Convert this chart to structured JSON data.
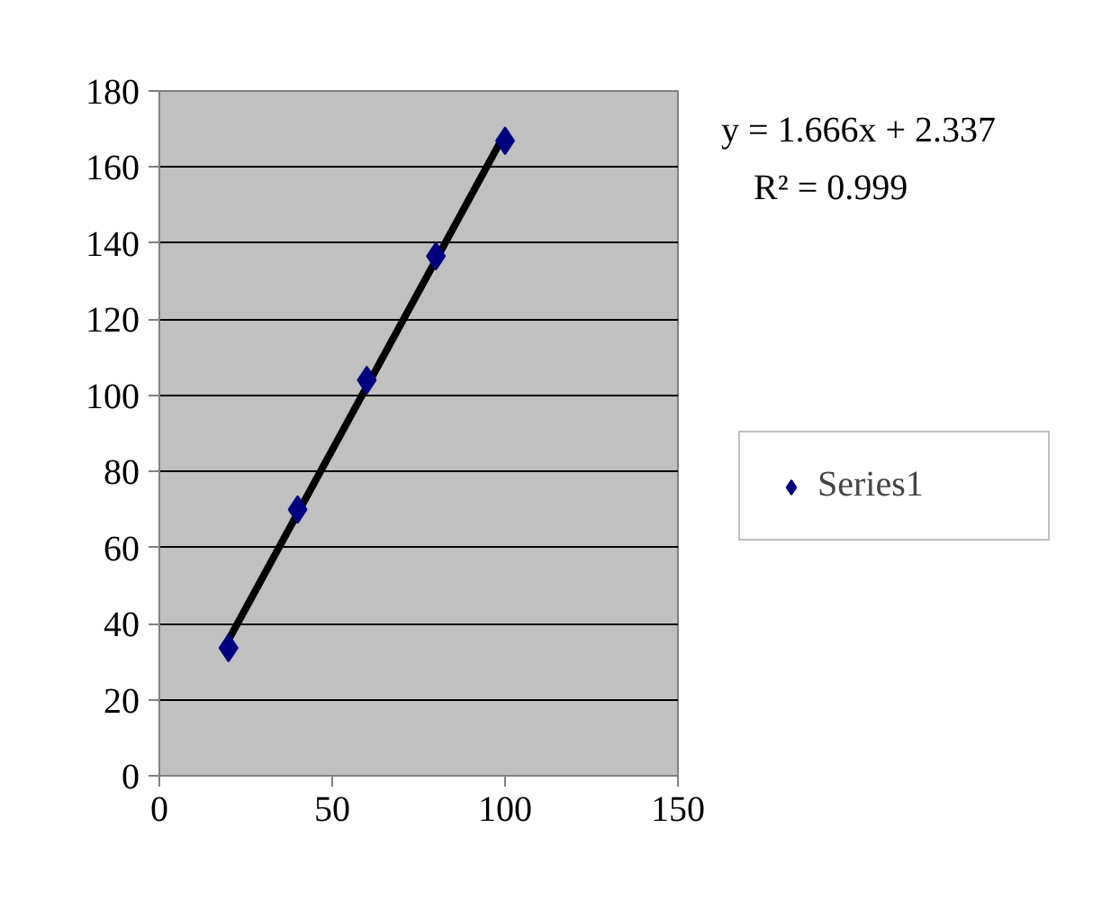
{
  "chart_data": {
    "type": "scatter",
    "x": [
      20,
      40,
      60,
      80,
      100
    ],
    "series": [
      {
        "name": "Series1",
        "color": "#000080",
        "values": [
          33.6,
          70,
          104,
          136.6,
          166.9
        ],
        "marker": "diamond"
      },
      {
        "type": "line",
        "color": "#000000",
        "x": [
          20,
          100
        ],
        "values": [
          35.7,
          168.9
        ],
        "marker": "none",
        "line_style": "solid"
      }
    ],
    "xlim": [
      0,
      150
    ],
    "xticks": [
      0,
      50,
      100,
      150
    ],
    "ylim": [
      0,
      180
    ],
    "yticks": [
      0,
      20,
      40,
      60,
      80,
      100,
      120,
      140,
      160,
      180
    ],
    "grid": "y",
    "legend": "right",
    "annotations": [
      "y = 1.666x + 2.337",
      "R² = 0.999"
    ]
  }
}
